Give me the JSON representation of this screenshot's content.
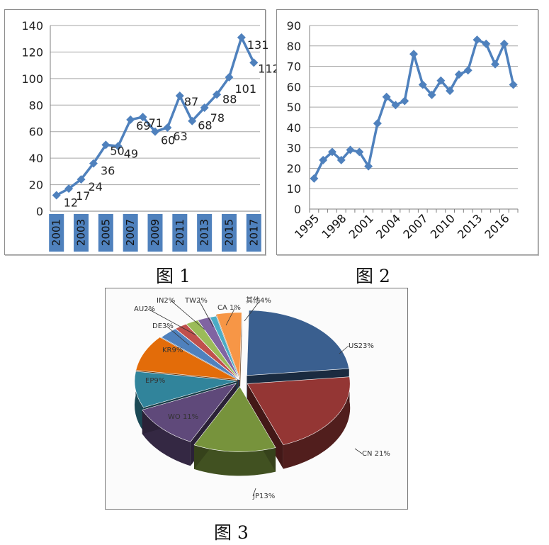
{
  "captions": {
    "fig1": "图 1",
    "fig2": "图 2",
    "fig3": "图 3"
  },
  "chart_data": [
    {
      "type": "line",
      "x": [
        2001,
        2002,
        2003,
        2004,
        2005,
        2006,
        2007,
        2008,
        2009,
        2010,
        2011,
        2012,
        2013,
        2014,
        2015,
        2016,
        2017
      ],
      "values": [
        12,
        17,
        24,
        36,
        50,
        49,
        69,
        71,
        60,
        63,
        87,
        68,
        78,
        88,
        101,
        131,
        112
      ],
      "x_tick_labels": [
        "2001",
        "2003",
        "2005",
        "2007",
        "2009",
        "2011",
        "2013",
        "2015",
        "2017"
      ],
      "ylim": [
        0,
        140
      ],
      "y_ticks": [
        0,
        20,
        40,
        60,
        80,
        100,
        120,
        140
      ],
      "data_labels": [
        "12",
        "17",
        "24",
        "36",
        "50",
        "49",
        "69",
        "71",
        "60",
        "63",
        "87",
        "68",
        "78",
        "88",
        "101",
        "131",
        "112"
      ],
      "grid": true,
      "color": "#4f81bd"
    },
    {
      "type": "line",
      "x": [
        1995,
        1996,
        1997,
        1998,
        1999,
        2000,
        2001,
        2002,
        2003,
        2004,
        2005,
        2006,
        2007,
        2008,
        2009,
        2010,
        2011,
        2012,
        2013,
        2014,
        2015,
        2016,
        2017
      ],
      "values": [
        15,
        24,
        28,
        24,
        29,
        28,
        21,
        42,
        55,
        51,
        53,
        76,
        61,
        56,
        63,
        58,
        66,
        68,
        83,
        81,
        71,
        81,
        61
      ],
      "x_tick_labels": [
        "1995",
        "1998",
        "2001",
        "2004",
        "2007",
        "2010",
        "2013",
        "2016"
      ],
      "ylim": [
        0,
        90
      ],
      "y_ticks": [
        0,
        10,
        20,
        30,
        40,
        50,
        60,
        70,
        80,
        90
      ],
      "grid": true,
      "color": "#4f81bd"
    },
    {
      "type": "pie",
      "labels": [
        "US23%",
        "CN 21%",
        "JP13%",
        "WO 11%",
        "EP9%",
        "KR9%",
        "DE3%",
        "AU2%",
        "IN2%",
        "TW2%",
        "CA 1%",
        "其他4%"
      ],
      "values": [
        23,
        21,
        13,
        11,
        9,
        9,
        3,
        2,
        2,
        2,
        1,
        4
      ],
      "colors": [
        "#3a5f8f",
        "#943634",
        "#77933c",
        "#5f497a",
        "#31849b",
        "#e36c09",
        "#4f81bd",
        "#c0504d",
        "#9bbb59",
        "#8064a2",
        "#4bacc6",
        "#f79646"
      ],
      "exploded": true,
      "three_d": true
    }
  ]
}
